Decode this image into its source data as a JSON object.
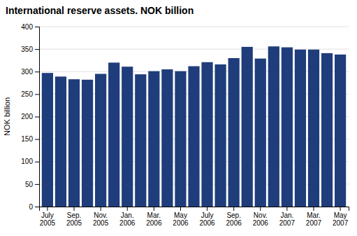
{
  "chart_data": {
    "type": "bar",
    "title": "International reserve assets. NOK billion",
    "ylabel": "NOK billion",
    "color": "#1f3d7a",
    "categories": [
      "July\n2005",
      null,
      "Sep.\n2005",
      null,
      "Nov.\n2005",
      null,
      "Jan.\n2006",
      null,
      "Mar.\n2006",
      null,
      "May\n2006",
      null,
      "July\n2006",
      null,
      "Sep.\n2006",
      null,
      "Nov.\n2006",
      null,
      "Jan.\n2007",
      null,
      "Mar.\n2007",
      null,
      "May\n2007"
    ],
    "values": [
      297,
      289,
      283,
      282,
      295,
      320,
      311,
      294,
      301,
      305,
      301,
      312,
      321,
      316,
      330,
      355,
      329,
      356,
      354,
      349,
      349,
      341,
      338
    ],
    "ylim": [
      0,
      400
    ],
    "yticks": [
      0,
      50,
      100,
      150,
      200,
      250,
      300,
      350,
      400
    ],
    "grid": true
  }
}
